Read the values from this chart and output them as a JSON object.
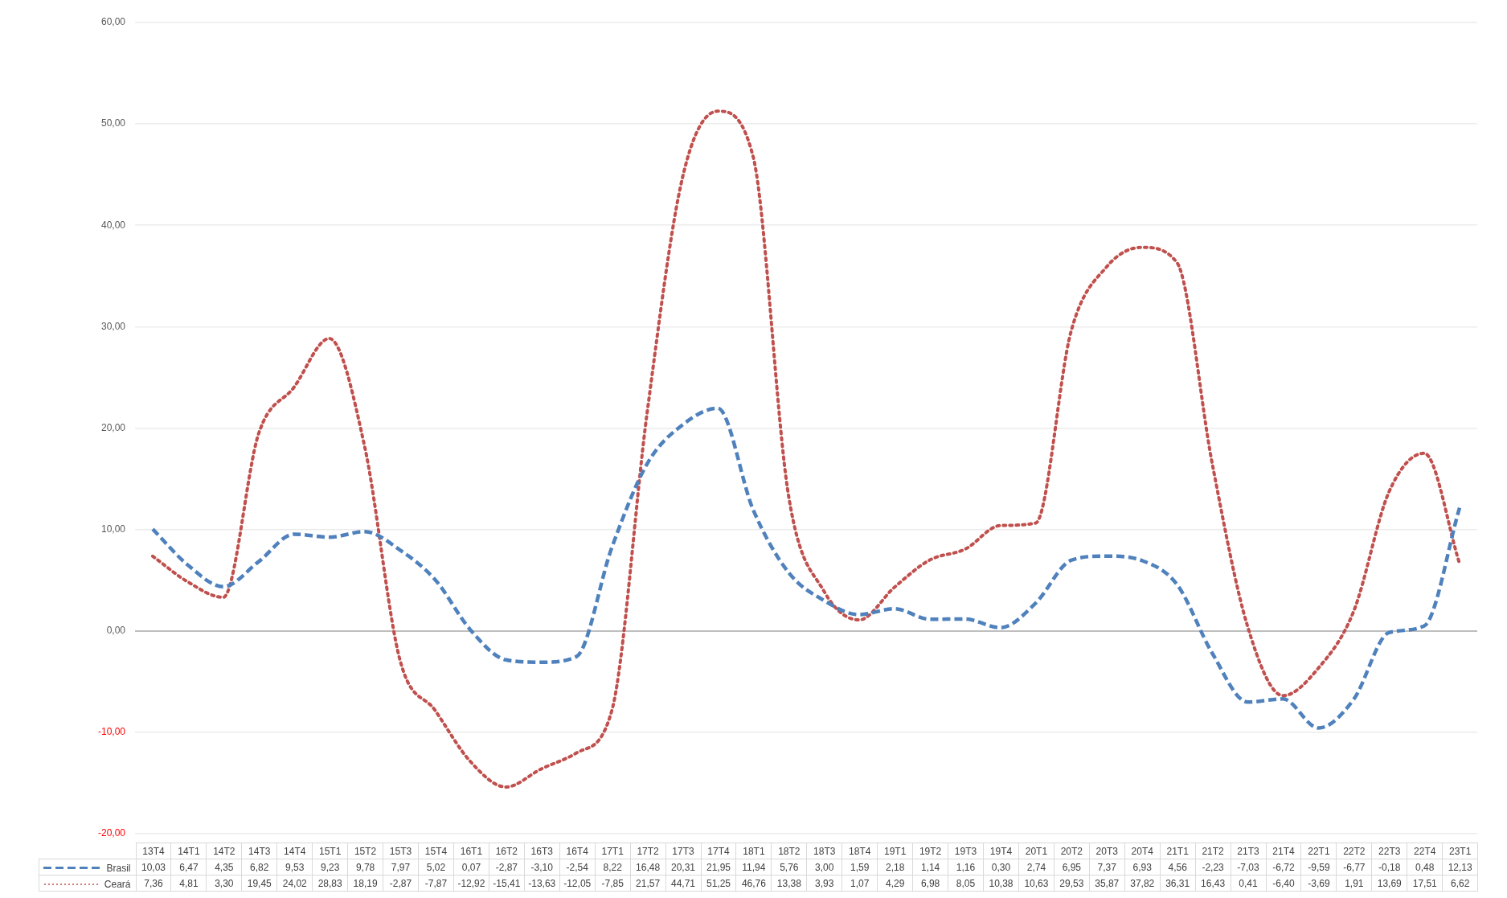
{
  "chart_data": {
    "type": "line",
    "categories": [
      "13T4",
      "14T1",
      "14T2",
      "14T3",
      "14T4",
      "15T1",
      "15T2",
      "15T3",
      "15T4",
      "16T1",
      "16T2",
      "16T3",
      "16T4",
      "17T1",
      "17T2",
      "17T3",
      "17T4",
      "18T1",
      "18T2",
      "18T3",
      "18T4",
      "19T1",
      "19T2",
      "19T3",
      "19T4",
      "20T1",
      "20T2",
      "20T3",
      "20T4",
      "21T1",
      "21T2",
      "21T3",
      "21T4",
      "22T1",
      "22T2",
      "22T3",
      "22T4",
      "23T1"
    ],
    "series": [
      {
        "name": "Brasil",
        "color": "#4f81bd",
        "line_style": "dashed",
        "values": [
          10.03,
          6.47,
          4.35,
          6.82,
          9.53,
          9.23,
          9.78,
          7.97,
          5.02,
          0.07,
          -2.87,
          -3.1,
          -2.54,
          8.22,
          16.48,
          20.31,
          21.95,
          11.94,
          5.76,
          3.0,
          1.59,
          2.18,
          1.14,
          1.16,
          0.3,
          2.74,
          6.95,
          7.37,
          6.93,
          4.56,
          -2.23,
          -7.03,
          -6.72,
          -9.59,
          -6.77,
          -0.18,
          0.48,
          12.13
        ],
        "value_labels": [
          "10,03",
          "6,47",
          "4,35",
          "6,82",
          "9,53",
          "9,23",
          "9,78",
          "7,97",
          "5,02",
          "0,07",
          "-2,87",
          "-3,10",
          "-2,54",
          "8,22",
          "16,48",
          "20,31",
          "21,95",
          "11,94",
          "5,76",
          "3,00",
          "1,59",
          "2,18",
          "1,14",
          "1,16",
          "0,30",
          "2,74",
          "6,95",
          "7,37",
          "6,93",
          "4,56",
          "-2,23",
          "-7,03",
          "-6,72",
          "-9,59",
          "-6,77",
          "-0,18",
          "0,48",
          "12,13"
        ]
      },
      {
        "name": "Ceará",
        "color": "#c0504d",
        "line_style": "dotted",
        "values": [
          7.36,
          4.81,
          3.3,
          19.45,
          24.02,
          28.83,
          18.19,
          -2.87,
          -7.87,
          -12.92,
          -15.41,
          -13.63,
          -12.05,
          -7.85,
          21.57,
          44.71,
          51.25,
          46.76,
          13.38,
          3.93,
          1.07,
          4.29,
          6.98,
          8.05,
          10.38,
          10.63,
          29.53,
          35.87,
          37.82,
          36.31,
          16.43,
          0.41,
          -6.4,
          -3.69,
          1.91,
          13.69,
          17.51,
          6.62
        ],
        "value_labels": [
          "7,36",
          "4,81",
          "3,30",
          "19,45",
          "24,02",
          "28,83",
          "18,19",
          "-2,87",
          "-7,87",
          "-12,92",
          "-15,41",
          "-13,63",
          "-12,05",
          "-7,85",
          "21,57",
          "44,71",
          "51,25",
          "46,76",
          "13,38",
          "3,93",
          "1,07",
          "4,29",
          "6,98",
          "8,05",
          "10,38",
          "10,63",
          "29,53",
          "35,87",
          "37,82",
          "36,31",
          "16,43",
          "0,41",
          "-6,40",
          "-3,69",
          "1,91",
          "13,69",
          "17,51",
          "6,62"
        ]
      }
    ],
    "ylim": [
      -20,
      60
    ],
    "yticks": [
      {
        "value": -20,
        "label": "-20,00"
      },
      {
        "value": -10,
        "label": "-10,00"
      },
      {
        "value": 0,
        "label": "0,00"
      },
      {
        "value": 10,
        "label": "10,00"
      },
      {
        "value": 20,
        "label": "20,00"
      },
      {
        "value": 30,
        "label": "30,00"
      },
      {
        "value": 40,
        "label": "40,00"
      },
      {
        "value": 50,
        "label": "50,00"
      },
      {
        "value": 60,
        "label": "60,00"
      }
    ],
    "grid": "y",
    "legend": "bottom",
    "marker": "none"
  }
}
